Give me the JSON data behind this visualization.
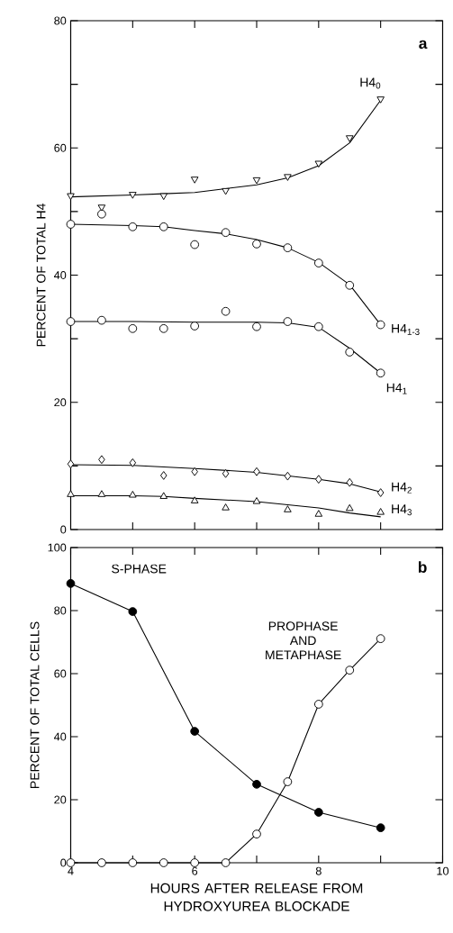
{
  "chart_data": [
    {
      "type": "scatter",
      "ylabel": "PERCENT OF TOTAL H4",
      "annotations": [
        "a"
      ],
      "xlim": [
        4,
        10
      ],
      "ylim": [
        0,
        80
      ],
      "tick_labels": "y",
      "xticks": [
        {
          "value": 5,
          "label": null
        },
        {
          "value": 6,
          "label": null
        },
        {
          "value": 7,
          "label": null
        },
        {
          "value": 8,
          "label": null
        },
        {
          "value": 9,
          "label": null
        }
      ],
      "yticks": [
        0,
        {
          "value": 10,
          "label": null
        },
        20,
        {
          "value": 30,
          "label": null
        },
        40,
        {
          "value": 50,
          "label": null
        },
        60,
        {
          "value": 70,
          "label": null
        },
        80
      ],
      "x": [
        4,
        4.5,
        5,
        5.5,
        6,
        6.5,
        7,
        7.5,
        8,
        8.5,
        9
      ],
      "series": [
        {
          "name": "H4$_{0}$",
          "type": "scatter",
          "marker": "triangle-down",
          "color": "#ffffff",
          "values": [
            52.5,
            50.7,
            52.7,
            52.5,
            55.1,
            53.3,
            55.0,
            55.5,
            57.6,
            61.6,
            67.7
          ]
        },
        {
          "type": "line",
          "marker": "none",
          "color": "#000000",
          "x": [
            4,
            5,
            5.5,
            6,
            6.5,
            7,
            7.5,
            8,
            8.5,
            9
          ],
          "values": [
            52.3,
            52.6,
            52.8,
            53.0,
            53.6,
            54.2,
            55.3,
            57.2,
            60.8,
            67.5
          ]
        },
        {
          "name": "H4$_{1-3}$",
          "type": "scatter",
          "marker": "circle",
          "color": "#ffffff",
          "values": [
            48.0,
            49.6,
            47.6,
            47.6,
            44.8,
            46.7,
            44.9,
            44.3,
            41.9,
            38.4,
            32.2
          ]
        },
        {
          "type": "line",
          "marker": "none",
          "color": "#000000",
          "x": [
            4,
            5,
            5.5,
            6,
            6.5,
            7,
            7.5,
            8,
            8.5,
            9
          ],
          "values": [
            48.0,
            47.8,
            47.6,
            47.0,
            46.5,
            45.6,
            44.3,
            42.0,
            38.5,
            32.2
          ]
        },
        {
          "name": "H4$_{1}$",
          "type": "scatter",
          "marker": "circle",
          "color": "#ffffff",
          "values": [
            32.7,
            32.9,
            31.6,
            31.6,
            32.0,
            34.3,
            31.9,
            32.7,
            31.9,
            27.9,
            24.6
          ]
        },
        {
          "type": "line",
          "marker": "none",
          "color": "#000000",
          "x": [
            4,
            5,
            6,
            7,
            7.5,
            8,
            8.5,
            9
          ],
          "values": [
            32.7,
            32.7,
            32.6,
            32.6,
            32.5,
            31.8,
            28.5,
            24.6
          ]
        },
        {
          "name": "H4$_{2}$",
          "type": "scatter",
          "marker": "diamond",
          "color": "#ffffff",
          "values": [
            10.3,
            11.0,
            10.5,
            8.5,
            9.1,
            8.8,
            9.1,
            8.4,
            7.9,
            7.4,
            5.8
          ]
        },
        {
          "type": "line",
          "marker": "none",
          "color": "#000000",
          "x": [
            4,
            5,
            6,
            7,
            8,
            8.5,
            9
          ],
          "values": [
            10.2,
            10.1,
            9.6,
            9.0,
            7.9,
            7.2,
            5.9
          ]
        },
        {
          "name": "H4$_{3}$",
          "type": "scatter",
          "marker": "triangle",
          "color": "#ffffff",
          "values": [
            5.5,
            5.5,
            5.4,
            5.2,
            4.5,
            3.4,
            4.4,
            3.1,
            2.4,
            3.3,
            2.7
          ]
        },
        {
          "type": "line",
          "marker": "none",
          "color": "#000000",
          "x": [
            4,
            5,
            5.5,
            6,
            7,
            8,
            8.5,
            9
          ],
          "values": [
            5.3,
            5.3,
            5.2,
            4.9,
            4.4,
            3.4,
            2.6,
            2.0
          ]
        }
      ]
    },
    {
      "type": "line",
      "ylabel": "PERCENT OF TOTAL CELLS",
      "xlabel": "HOURS AFTER RELEASE FROM HYDROXYUREA BLOCKADE",
      "annotations": [
        "b"
      ],
      "xlim": [
        4,
        10
      ],
      "ylim": [
        0,
        100
      ],
      "xticks": [
        4,
        {
          "value": 5,
          "label": null
        },
        6,
        {
          "value": 7,
          "label": null
        },
        8,
        {
          "value": 9,
          "label": null
        },
        10
      ],
      "yticks": [
        0,
        20,
        40,
        60,
        80,
        100
      ],
      "marker": "circle",
      "series": [
        {
          "name": "S-PHASE",
          "color": "#000000",
          "x": [
            4,
            5,
            6,
            7,
            8,
            9
          ],
          "values": [
            88.6,
            79.7,
            41.7,
            24.9,
            16.0,
            11.1
          ]
        },
        {
          "name": "PROPHASE AND METAPHASE",
          "color": "#ffffff",
          "x": [
            4,
            4.5,
            5,
            5.5,
            6,
            6.5,
            7,
            7.5,
            8,
            8.5,
            9
          ],
          "values": [
            0,
            0,
            0,
            0,
            0,
            0,
            9.1,
            25.7,
            50.3,
            61.1,
            71.1
          ]
        }
      ]
    }
  ]
}
